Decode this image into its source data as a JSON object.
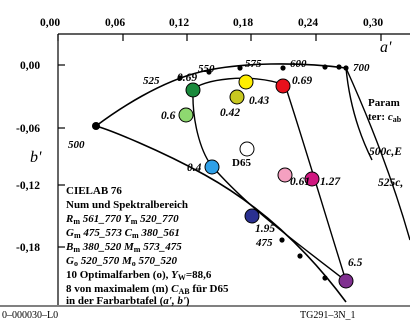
{
  "axes": {
    "x_ticks": [
      "0,00",
      "0,06",
      "0,12",
      "0,18",
      "0,24",
      "0,30"
    ],
    "y_ticks": [
      "0,00",
      "-0,06",
      "-0,12",
      "-0,18"
    ],
    "x_label": "a'",
    "y_label": "b'"
  },
  "wavelengths": [
    "500",
    "525",
    "550",
    "575",
    "600",
    "700",
    "475"
  ],
  "values": [
    "0.69",
    "0.69",
    "0.43",
    "0.42",
    "0.6",
    "0.4",
    "0.61",
    "1.27",
    "1.95",
    "6.5"
  ],
  "d65_label": "D65",
  "param": {
    "line1": "Param",
    "line2_prefix": "ter: ",
    "line2_var": "c",
    "line2_sub": "ab",
    "curve1": "500c,E",
    "curve2": "525c,"
  },
  "info": {
    "title": "CIELAB 76",
    "subtitle": "Num und Spektralbereich",
    "rows": [
      {
        "a": "R",
        "a_sub": "m",
        "a_val": "561_770",
        "b": "Y",
        "b_sub": "m",
        "b_val": "520_770"
      },
      {
        "a": "G",
        "a_sub": "m",
        "a_val": "475_573",
        "b": "C",
        "b_sub": "m",
        "b_val": "380_561"
      },
      {
        "a": "B",
        "a_sub": "m",
        "a_val": "380_520",
        "b": "M",
        "b_sub": "m",
        "b_val": "573_475"
      },
      {
        "a": "G",
        "a_sub": "o",
        "a_val": "520_570",
        "b": "M",
        "b_sub": "o",
        "b_val": "570_520"
      }
    ],
    "line_optimal_prefix": "10 Optimalfarben (o), ",
    "line_optimal_var": "Y",
    "line_optimal_sub": "W",
    "line_optimal_val": "=88,6",
    "line_max_prefix": "8 von maximalem (m) ",
    "line_max_var": "C",
    "line_max_sub": "AB",
    "line_max_suffix": " für D65",
    "line_tafel_prefix": "in der Farbarbtafel (",
    "line_tafel_var": "a', b'",
    "line_tafel_suffix": ")"
  },
  "footer": {
    "left": "0–000030–L0",
    "right": "TG291–3N_1"
  },
  "colors": {
    "green": "#1a8a3c",
    "yellow": "#ffee00",
    "red": "#e8101c",
    "olive": "#c8c820",
    "light_green": "#8ed870",
    "blue": "#2ea0e8",
    "pink": "#f4a0c0",
    "dark_blue": "#2a3090",
    "violet": "#803090",
    "magenta": "#d01880"
  }
}
